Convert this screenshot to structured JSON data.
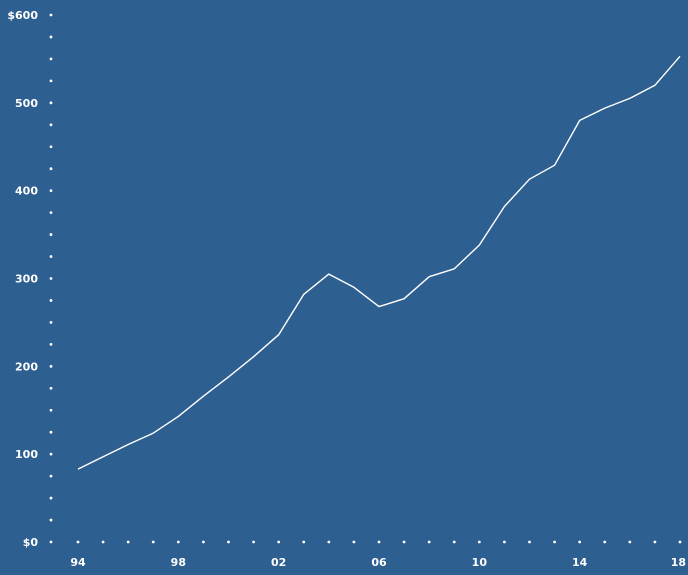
{
  "chart_data": {
    "type": "line",
    "title": "",
    "xlabel": "",
    "ylabel": "",
    "xlim": [
      1994,
      2018
    ],
    "ylim": [
      0,
      600
    ],
    "grid": false,
    "legend": "none",
    "x_ticks": [
      {
        "value": 1994,
        "label": "94"
      },
      {
        "value": 1998,
        "label": "98"
      },
      {
        "value": 2002,
        "label": "02"
      },
      {
        "value": 2006,
        "label": "06"
      },
      {
        "value": 2010,
        "label": "10"
      },
      {
        "value": 2014,
        "label": "14"
      },
      {
        "value": 2018,
        "label": "18"
      }
    ],
    "y_ticks": [
      {
        "value": 0,
        "label": "$0"
      },
      {
        "value": 100,
        "label": "100"
      },
      {
        "value": 200,
        "label": "200"
      },
      {
        "value": 300,
        "label": "300"
      },
      {
        "value": 400,
        "label": "400"
      },
      {
        "value": 500,
        "label": "500"
      },
      {
        "value": 600,
        "label": "$600"
      }
    ],
    "series": [
      {
        "x": [
          1994,
          1995,
          1996,
          1997,
          1998,
          1999,
          2000,
          2001,
          2002,
          2003,
          2004,
          2005,
          2006,
          2007,
          2008,
          2009,
          2010,
          2011,
          2012,
          2013,
          2014,
          2015,
          2016,
          2017,
          2018
        ],
        "values": [
          83,
          97,
          111,
          124,
          143,
          166,
          188,
          211,
          236,
          282,
          305,
          290,
          268,
          277,
          302,
          311,
          338,
          382,
          413,
          429,
          480,
          494,
          505,
          520,
          553
        ]
      }
    ],
    "colors": {
      "background": "#2e5f91",
      "line": "#ffffff",
      "text": "#ffffff"
    }
  }
}
